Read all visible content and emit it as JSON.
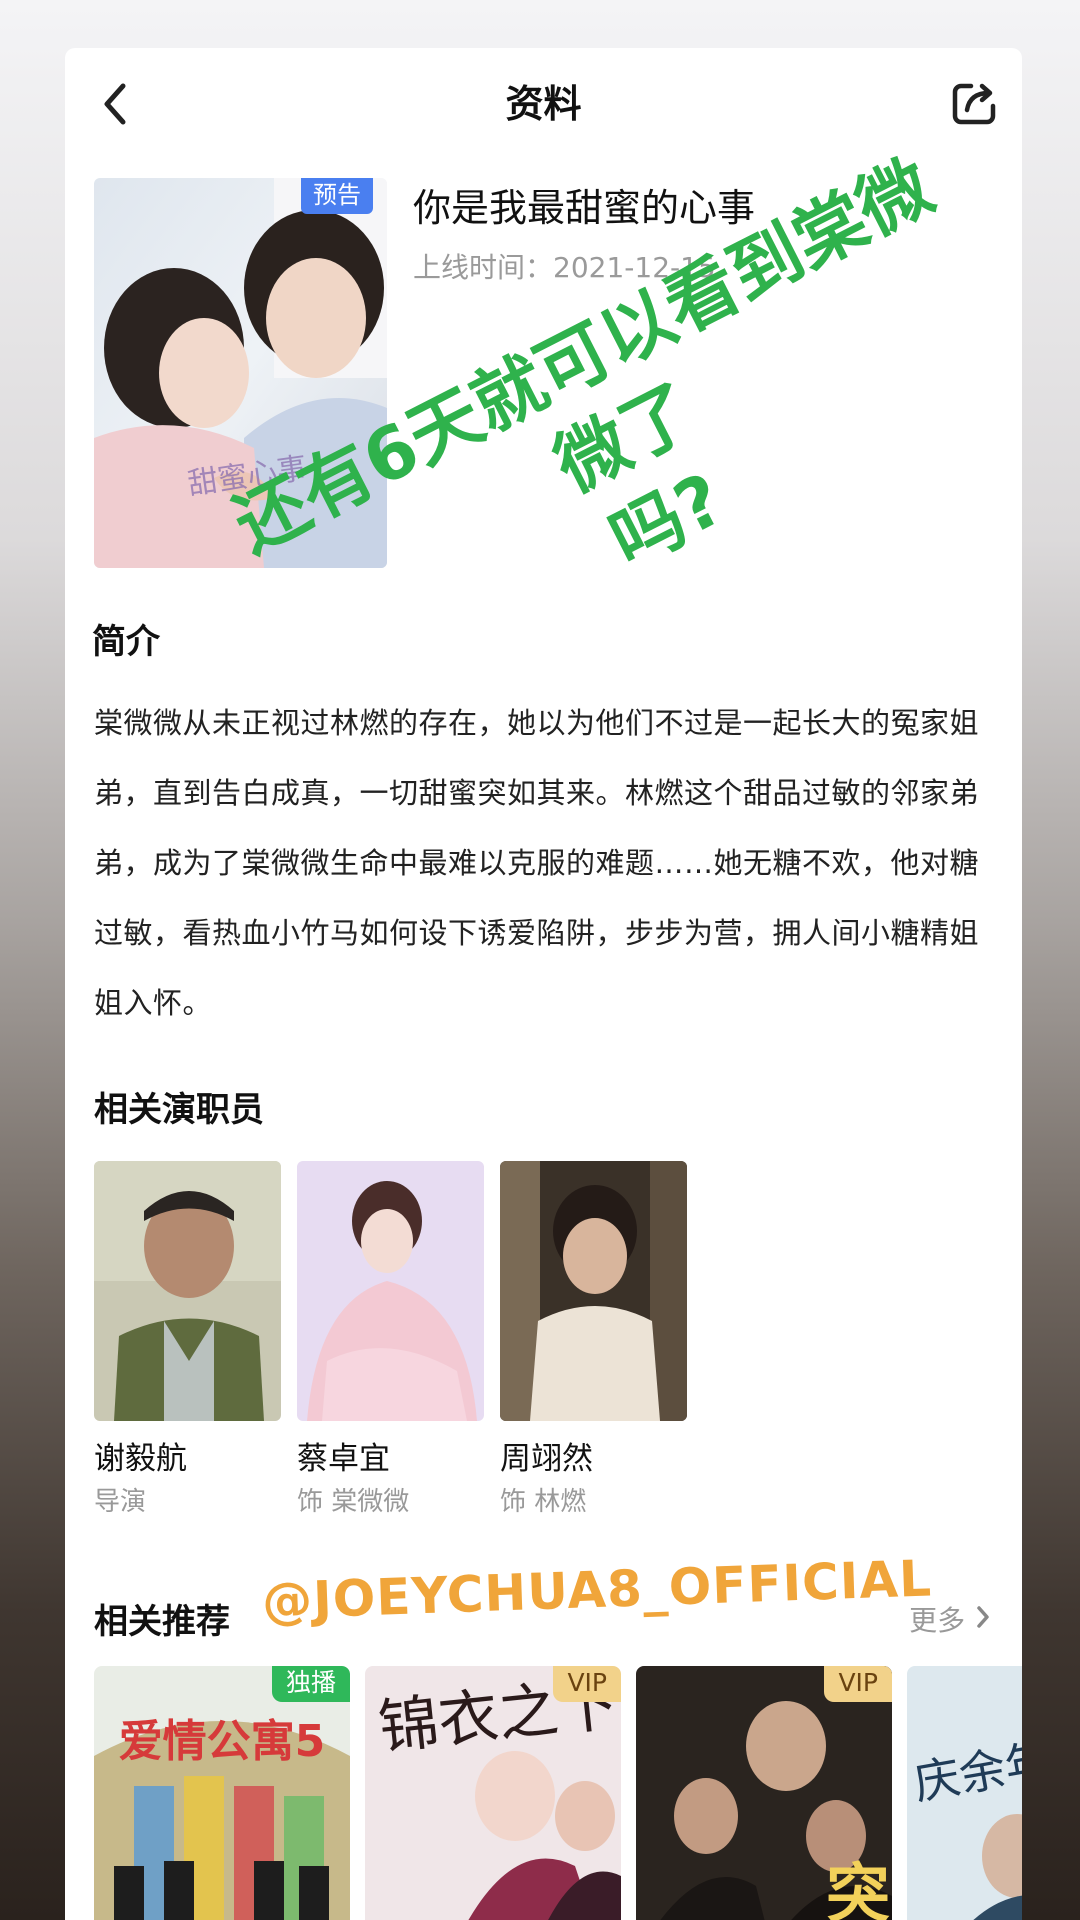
{
  "header": {
    "title": "资料"
  },
  "drama": {
    "title": "你是我最甜蜜的心事",
    "badge": "预告",
    "release_label": "上线时间：",
    "release_date": "2021-12-15"
  },
  "synopsis": {
    "heading": "简介",
    "text": "棠微微从未正视过林燃的存在，她以为他们不过是一起长大的冤家姐弟，直到告白成真，一切甜蜜突如其来。林燃这个甜品过敏的邻家弟弟，成为了棠微微生命中最难以克服的难题……她无糖不欢，他对糖过敏，看热血小竹马如何设下诱爱陷阱，步步为营，拥人间小糖精姐姐入怀。"
  },
  "cast": {
    "heading": "相关演职员",
    "items": [
      {
        "name": "谢毅航",
        "role": "导演"
      },
      {
        "name": "蔡卓宜",
        "role": "饰 棠微微"
      },
      {
        "name": "周翊然",
        "role": "饰 林燃"
      }
    ]
  },
  "recommend": {
    "heading": "相关推荐",
    "more": "更多",
    "items": [
      {
        "badge": "独播",
        "badge_color": "#2fb85a",
        "poster_text": "爱情公寓5"
      },
      {
        "badge": "VIP",
        "badge_color": "#f2d28a",
        "poster_text": "锦衣之下"
      },
      {
        "badge": "VIP",
        "badge_color": "#f2d28a",
        "poster_text": "突"
      },
      {
        "badge": "",
        "badge_color": "",
        "poster_text": "庆余年"
      }
    ]
  },
  "overlay": {
    "text_line1": "还有6天就可以看到棠微微了",
    "text_line2": "吗?",
    "text_color": "#2fb24c",
    "watermark": "@JOEYCHUA8_OFFICIAL",
    "watermark_color": "#f0a53a"
  },
  "icons": {
    "back": "chevron-left-icon",
    "share": "share-icon",
    "more": "chevron-right-icon"
  }
}
